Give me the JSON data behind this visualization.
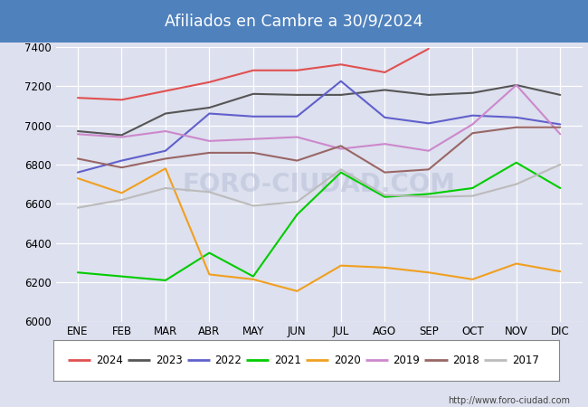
{
  "title": "Afiliados en Cambre a 30/9/2024",
  "title_bg_color": "#4f81bd",
  "title_text_color": "white",
  "ylim": [
    6000,
    7400
  ],
  "yticks": [
    6000,
    6200,
    6400,
    6600,
    6800,
    7000,
    7200,
    7400
  ],
  "months": [
    "ENE",
    "FEB",
    "MAR",
    "ABR",
    "MAY",
    "JUN",
    "JUL",
    "AGO",
    "SEP",
    "OCT",
    "NOV",
    "DIC"
  ],
  "watermark": "FORO-CIUDAD.COM",
  "url": "http://www.foro-ciudad.com",
  "series": {
    "2024": {
      "color": "#e05050",
      "values": [
        7140,
        7130,
        7175,
        7220,
        7280,
        7280,
        7310,
        7270,
        7390,
        null,
        null,
        null
      ]
    },
    "2023": {
      "color": "#555555",
      "values": [
        6970,
        6950,
        7060,
        7090,
        7160,
        7155,
        7155,
        7180,
        7155,
        7165,
        7205,
        7155
      ]
    },
    "2022": {
      "color": "#6060cc",
      "values": [
        6760,
        6820,
        6870,
        7060,
        7045,
        7045,
        7225,
        7040,
        7010,
        7050,
        7040,
        7005
      ]
    },
    "2021": {
      "color": "#00cc00",
      "values": [
        6250,
        6230,
        6210,
        6350,
        6230,
        6545,
        6760,
        6635,
        6650,
        6680,
        6810,
        6680
      ]
    },
    "2020": {
      "color": "#f0a020",
      "values": [
        6730,
        6655,
        6780,
        6240,
        6215,
        6155,
        6285,
        6275,
        6250,
        6215,
        6295,
        6255
      ]
    },
    "2019": {
      "color": "#cc88cc",
      "values": [
        6955,
        6940,
        6970,
        6920,
        6930,
        6940,
        6880,
        6905,
        6870,
        7005,
        7205,
        6955
      ]
    },
    "2018": {
      "color": "#996666",
      "values": [
        6830,
        6785,
        6830,
        6860,
        6860,
        6820,
        6895,
        6760,
        6775,
        6960,
        6990,
        6990
      ]
    },
    "2017": {
      "color": "#bbbbbb",
      "values": [
        6580,
        6620,
        6680,
        6660,
        6590,
        6610,
        6775,
        6645,
        6635,
        6640,
        6700,
        6800
      ]
    }
  },
  "legend_order": [
    "2024",
    "2023",
    "2022",
    "2021",
    "2020",
    "2019",
    "2018",
    "2017"
  ],
  "background_color": "#dde0ee",
  "plot_bg_color": "#dde0ee",
  "grid_color": "white",
  "figsize": [
    6.5,
    4.5
  ],
  "dpi": 100
}
